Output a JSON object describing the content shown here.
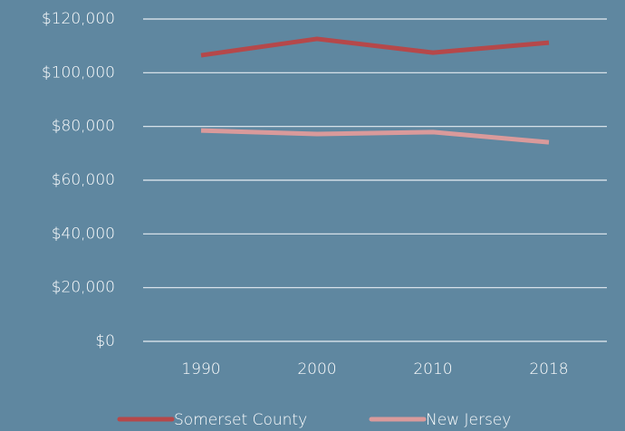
{
  "chart_data": {
    "type": "line",
    "categories": [
      "1990",
      "2000",
      "2010",
      "2018"
    ],
    "series": [
      {
        "name": "Somerset County",
        "color": "#b5484a",
        "values": [
          106500,
          112600,
          107500,
          111200
        ]
      },
      {
        "name": "New Jersey",
        "color": "#d99a9b",
        "values": [
          78500,
          77200,
          77900,
          74100
        ]
      }
    ],
    "ylim": [
      0,
      120000
    ],
    "yticks": [
      {
        "value": 0,
        "label": "$0"
      },
      {
        "value": 20000,
        "label": "$20,000"
      },
      {
        "value": 40000,
        "label": "$40,000"
      },
      {
        "value": 60000,
        "label": "$60,000"
      },
      {
        "value": 80000,
        "label": "$80,000"
      },
      {
        "value": 100000,
        "label": "$100,000"
      },
      {
        "value": 120000,
        "label": "$120,000"
      }
    ],
    "grid": true,
    "legend": "bottom"
  }
}
